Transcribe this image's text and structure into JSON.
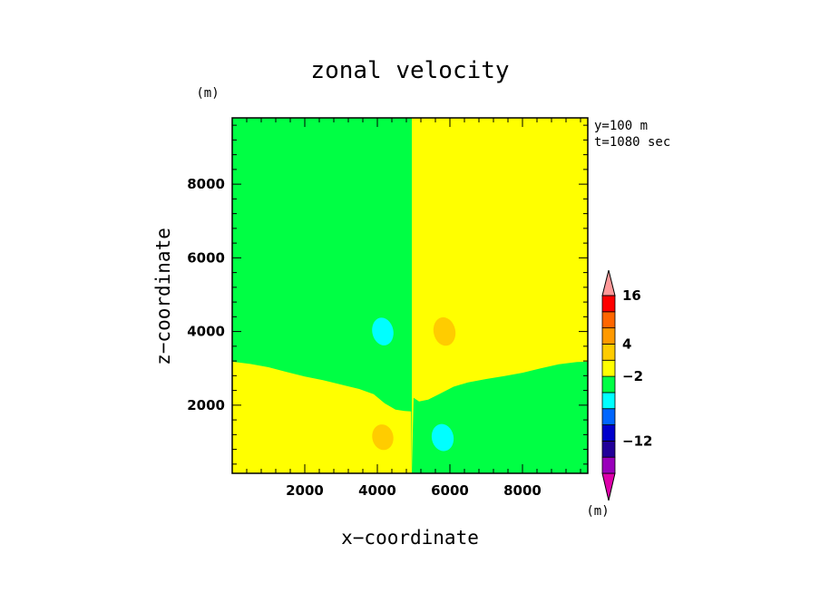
{
  "chart_data": {
    "type": "heatmap",
    "title": "zonal velocity",
    "xlabel": "x−coordinate",
    "ylabel": "z−coordinate",
    "y_unit": "(m)",
    "colorbar_unit": "(m)",
    "annotations": [
      "y=100 m",
      "t=1080 sec"
    ],
    "xlim": [
      0,
      9800
    ],
    "ylim": [
      150,
      9800
    ],
    "x_ticks": [
      2000,
      4000,
      6000,
      8000
    ],
    "y_ticks": [
      2000,
      4000,
      6000,
      8000
    ],
    "x_tick_labels": [
      "2000",
      "4000",
      "6000",
      "8000"
    ],
    "y_tick_labels": [
      "2000",
      "4000",
      "6000",
      "8000"
    ],
    "colorbar": {
      "colors": [
        "#dd00aa",
        "#9900bb",
        "#220099",
        "#0000cc",
        "#0066ff",
        "#00ffff",
        "#00ff44",
        "#ffff00",
        "#ffcc00",
        "#ff9900",
        "#ff6600",
        "#ff0000",
        "#ff9999"
      ],
      "labels": [
        {
          "text": "16",
          "boundary": 11
        },
        {
          "text": "4",
          "boundary": 8
        },
        {
          "text": "−2",
          "boundary": 6
        },
        {
          "text": "−12",
          "boundary": 2
        }
      ]
    },
    "regions": {
      "interface_z": [
        [
          0,
          3180
        ],
        [
          500,
          3120
        ],
        [
          1000,
          3030
        ],
        [
          1500,
          2900
        ],
        [
          2000,
          2780
        ],
        [
          2500,
          2680
        ],
        [
          3000,
          2560
        ],
        [
          3500,
          2440
        ],
        [
          3900,
          2300
        ],
        [
          4200,
          2050
        ],
        [
          4500,
          1880
        ],
        [
          4750,
          1840
        ],
        [
          4930,
          1830
        ],
        [
          5000,
          2200
        ],
        [
          5150,
          2100
        ],
        [
          5400,
          2150
        ],
        [
          5700,
          2300
        ],
        [
          6100,
          2500
        ],
        [
          6500,
          2620
        ],
        [
          7000,
          2710
        ],
        [
          7500,
          2790
        ],
        [
          8000,
          2880
        ],
        [
          8500,
          3000
        ],
        [
          9000,
          3110
        ],
        [
          9500,
          3170
        ],
        [
          9800,
          3180
        ]
      ],
      "divider_x": 4950,
      "upper_left_value": "−2 to 4",
      "upper_right_value": "4 to 10",
      "lower_left_value": "4 to 10",
      "lower_right_value": "−2 to 4"
    },
    "cells": [
      {
        "x": 4150,
        "z": 4000,
        "rx": 290,
        "rz": 380,
        "color": "#00ffff"
      },
      {
        "x": 5850,
        "z": 4000,
        "rx": 300,
        "rz": 390,
        "color": "#ffcc00"
      },
      {
        "x": 4150,
        "z": 1130,
        "rx": 290,
        "rz": 350,
        "color": "#ffcc00"
      },
      {
        "x": 5800,
        "z": 1120,
        "rx": 300,
        "rz": 370,
        "color": "#00ffff"
      }
    ]
  }
}
